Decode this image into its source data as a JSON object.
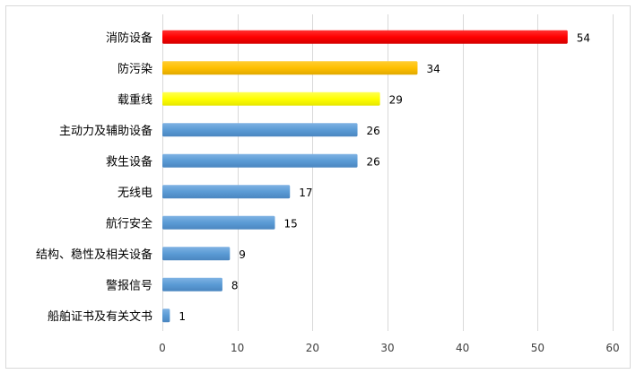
{
  "chart_data": {
    "type": "bar",
    "orientation": "horizontal",
    "categories": [
      "消防设备",
      "防污染",
      "载重线",
      "主动力及辅助设备",
      "救生设备",
      "无线电",
      "航行安全",
      "结构、稳性及相关设备",
      "警报信号",
      "船舶证书及有关文书"
    ],
    "values": [
      54,
      34,
      29,
      26,
      26,
      17,
      15,
      9,
      8,
      1
    ],
    "bar_colors": [
      "#ff0000",
      "#ffc000",
      "#ffff00",
      "#5b9bd5",
      "#5b9bd5",
      "#5b9bd5",
      "#5b9bd5",
      "#5b9bd5",
      "#5b9bd5",
      "#5b9bd5"
    ],
    "x_ticks": [
      0,
      10,
      20,
      30,
      40,
      50,
      60
    ],
    "xlim": [
      0,
      60
    ],
    "grid": true,
    "data_labels": true,
    "title": "",
    "xlabel": "",
    "ylabel": ""
  }
}
